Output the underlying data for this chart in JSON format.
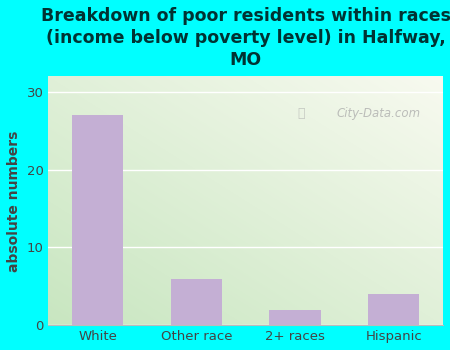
{
  "categories": [
    "White",
    "Other race",
    "2+ races",
    "Hispanic"
  ],
  "values": [
    27,
    6,
    2,
    4
  ],
  "bar_color": "#c4afd4",
  "title": "Breakdown of poor residents within races\n(income below poverty level) in Halfway,\nMO",
  "ylabel": "absolute numbers",
  "ylim": [
    0,
    32
  ],
  "yticks": [
    0,
    10,
    20,
    30
  ],
  "background_color": "#00ffff",
  "plot_bg_left": "#c8e6c0",
  "plot_bg_right": "#f5f5f0",
  "title_color": "#003333",
  "axis_color": "#444444",
  "watermark": "City-Data.com",
  "title_fontsize": 12.5,
  "ylabel_fontsize": 10,
  "grid_color": "#dddddd"
}
